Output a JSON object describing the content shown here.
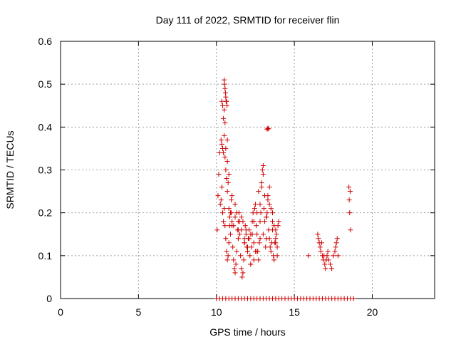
{
  "chart_data": {
    "type": "scatter",
    "title": "Day 111 of 2022, SRMTID for receiver flin",
    "xlabel": "GPS time / hours",
    "ylabel": "SRMTID / TECUs",
    "xlim": [
      0,
      24
    ],
    "ylim": [
      0,
      0.6
    ],
    "xticks": [
      0,
      5,
      10,
      15,
      20
    ],
    "xtick_labels": [
      "0",
      "5",
      "10",
      "15",
      "20"
    ],
    "yticks": [
      0,
      0.1,
      0.2,
      0.3,
      0.4,
      0.5,
      0.6
    ],
    "ytick_labels": [
      "0",
      "0.1",
      "0.2",
      "0.3",
      "0.4",
      "0.5",
      "0.6"
    ],
    "grid": true,
    "marker": "+",
    "color": "#cc0000",
    "series": [
      {
        "name": "SRMTID",
        "x": [
          10.05,
          10.1,
          10.15,
          10.2,
          10.25,
          10.3,
          10.35,
          10.4,
          10.45,
          10.5,
          10.55,
          10.6,
          10.65,
          10.7,
          10.75,
          10.8,
          10.85,
          10.9,
          10.95,
          11.0,
          11.05,
          11.1,
          11.15,
          11.2,
          11.25,
          11.3,
          11.35,
          11.4,
          11.45,
          11.5,
          11.55,
          11.6,
          11.65,
          11.7,
          11.75,
          11.8,
          11.85,
          11.9,
          11.95,
          12.0,
          12.05,
          12.1,
          12.15,
          12.2,
          12.25,
          12.3,
          12.35,
          12.4,
          12.45,
          12.5,
          12.55,
          12.6,
          12.65,
          12.7,
          12.75,
          12.8,
          12.85,
          12.9,
          12.95,
          13.0,
          13.05,
          13.1,
          13.15,
          13.2,
          13.25,
          13.3,
          13.35,
          13.4,
          13.45,
          13.5,
          13.55,
          13.6,
          13.65,
          13.7,
          13.75,
          13.8,
          13.85,
          13.9,
          13.95,
          14.0,
          10.3,
          10.35,
          10.4,
          10.45,
          10.5,
          10.55,
          10.6,
          10.65,
          10.7,
          10.75,
          10.8,
          10.85,
          10.9,
          10.95,
          11.0,
          11.1,
          11.2,
          11.3,
          11.4,
          11.5,
          11.6,
          11.7,
          11.8,
          11.9,
          12.0,
          12.1,
          12.2,
          12.3,
          12.4,
          12.5,
          12.6,
          12.7,
          12.8,
          12.9,
          13.0,
          13.1,
          13.2,
          13.3,
          13.4,
          13.5,
          13.6,
          13.7,
          13.8,
          13.9,
          10.35,
          10.4,
          10.45,
          10.5,
          10.55,
          10.6,
          10.7,
          10.8,
          11.0,
          11.2,
          11.4,
          11.6,
          11.8,
          12.0,
          12.2,
          12.4,
          12.6,
          12.8,
          13.0,
          13.2,
          13.4,
          13.6,
          13.8,
          10.5,
          10.52,
          10.55,
          10.58,
          10.6,
          10.62,
          10.65,
          10.68,
          10.7,
          13.25,
          13.3,
          13.35,
          15.9,
          16.5,
          16.55,
          16.6,
          16.65,
          16.7,
          16.75,
          16.8,
          16.85,
          16.9,
          16.95,
          17.0,
          17.05,
          17.1,
          17.15,
          17.2,
          17.3,
          17.4,
          17.5,
          17.6,
          17.65,
          17.7,
          17.75,
          17.8,
          18.5,
          18.52,
          18.55,
          18.58,
          18.6,
          10.0,
          10.2,
          10.4,
          10.6,
          10.8,
          11.0,
          11.2,
          11.4,
          11.6,
          11.8,
          12.0,
          12.2,
          12.4,
          12.6,
          12.8,
          13.0,
          13.2,
          13.4,
          13.6,
          13.8,
          14.0,
          14.2,
          14.4,
          14.6,
          14.8,
          15.0,
          15.2,
          15.4,
          15.6,
          15.8,
          16.0,
          16.2,
          16.4,
          16.6,
          16.8,
          17.0,
          17.2,
          17.4,
          17.6,
          17.8,
          18.0,
          18.2,
          18.4,
          18.6,
          18.8
        ],
        "y": [
          0.16,
          0.24,
          0.29,
          0.34,
          0.22,
          0.23,
          0.26,
          0.2,
          0.18,
          0.21,
          0.17,
          0.14,
          0.11,
          0.09,
          0.1,
          0.13,
          0.17,
          0.15,
          0.2,
          0.17,
          0.12,
          0.09,
          0.07,
          0.06,
          0.08,
          0.11,
          0.16,
          0.14,
          0.2,
          0.18,
          0.1,
          0.07,
          0.05,
          0.06,
          0.09,
          0.13,
          0.17,
          0.15,
          0.12,
          0.11,
          0.14,
          0.16,
          0.1,
          0.08,
          0.12,
          0.15,
          0.2,
          0.18,
          0.21,
          0.22,
          0.17,
          0.15,
          0.11,
          0.09,
          0.13,
          0.18,
          0.2,
          0.26,
          0.3,
          0.31,
          0.21,
          0.18,
          0.12,
          0.14,
          0.2,
          0.24,
          0.16,
          0.14,
          0.12,
          0.11,
          0.13,
          0.16,
          0.1,
          0.09,
          0.13,
          0.14,
          0.15,
          0.12,
          0.17,
          0.18,
          0.37,
          0.36,
          0.35,
          0.34,
          0.38,
          0.33,
          0.3,
          0.28,
          0.25,
          0.27,
          0.21,
          0.19,
          0.2,
          0.23,
          0.18,
          0.17,
          0.19,
          0.2,
          0.16,
          0.15,
          0.19,
          0.18,
          0.14,
          0.16,
          0.12,
          0.14,
          0.15,
          0.18,
          0.13,
          0.11,
          0.2,
          0.25,
          0.22,
          0.27,
          0.29,
          0.24,
          0.19,
          0.23,
          0.26,
          0.21,
          0.2,
          0.17,
          0.16,
          0.1,
          0.46,
          0.45,
          0.42,
          0.44,
          0.41,
          0.35,
          0.32,
          0.29,
          0.24,
          0.22,
          0.18,
          0.16,
          0.13,
          0.11,
          0.08,
          0.09,
          0.11,
          0.14,
          0.15,
          0.19,
          0.22,
          0.18,
          0.13,
          0.51,
          0.5,
          0.49,
          0.48,
          0.47,
          0.46,
          0.46,
          0.45,
          0.37,
          0.395,
          0.397,
          0.396,
          0.1,
          0.15,
          0.14,
          0.13,
          0.12,
          0.11,
          0.13,
          0.1,
          0.09,
          0.1,
          0.08,
          0.07,
          0.09,
          0.1,
          0.11,
          0.09,
          0.08,
          0.07,
          0.1,
          0.11,
          0.12,
          0.13,
          0.14,
          0.1,
          0.26,
          0.23,
          0.2,
          0.25,
          0.16,
          0,
          0,
          0,
          0,
          0,
          0,
          0,
          0,
          0,
          0,
          0,
          0,
          0,
          0,
          0,
          0,
          0,
          0,
          0,
          0,
          0,
          0,
          0,
          0,
          0,
          0,
          0,
          0,
          0,
          0,
          0,
          0,
          0,
          0,
          0,
          0,
          0,
          0,
          0,
          0,
          0,
          0,
          0,
          0,
          0
        ]
      }
    ]
  }
}
